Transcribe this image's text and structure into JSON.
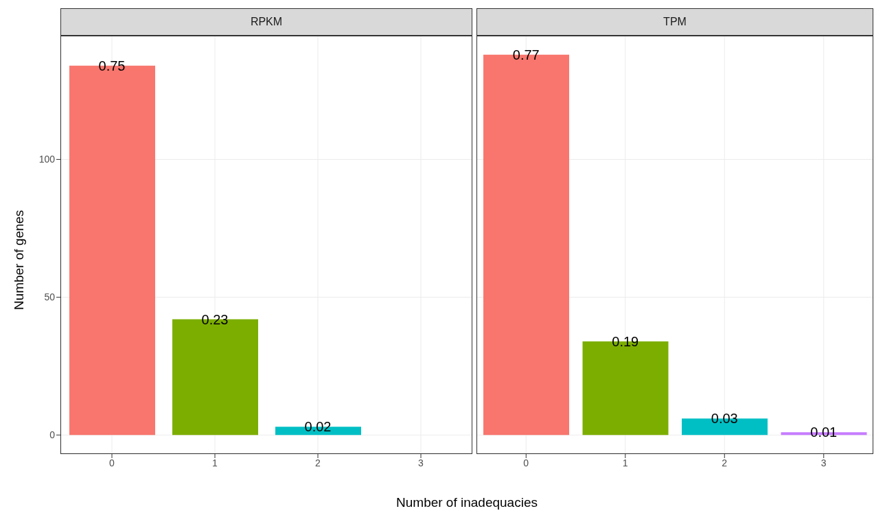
{
  "chart_data": [
    {
      "type": "bar",
      "title": "RPKM",
      "xlabel": "Number of inadequacies",
      "ylabel": "Number of genes",
      "categories": [
        "0",
        "1",
        "2",
        "3"
      ],
      "values": [
        134,
        42,
        3,
        null
      ],
      "colors": [
        "#f8766d",
        "#7cae00",
        "#00bfc4",
        "#c77cff"
      ],
      "ylim": [
        -6.9,
        144.9
      ],
      "yticks": [
        0,
        50,
        100
      ],
      "grid": true,
      "annotations": [
        {
          "text": "0.75",
          "x": "0",
          "y": 134
        },
        {
          "text": "0.23",
          "x": "1",
          "y": 42
        },
        {
          "text": "0.02",
          "x": "2",
          "y": 3
        }
      ]
    },
    {
      "type": "bar",
      "title": "TPM",
      "categories": [
        "0",
        "1",
        "2",
        "3"
      ],
      "values": [
        138,
        34,
        6,
        1
      ],
      "colors": [
        "#f8766d",
        "#7cae00",
        "#00bfc4",
        "#c77cff"
      ],
      "ylim": [
        -6.9,
        144.9
      ],
      "yticks": [
        0,
        50,
        100
      ],
      "grid": true,
      "tick_labels": "x",
      "annotations": [
        {
          "text": "0.77",
          "x": "0",
          "y": 138
        },
        {
          "text": "0.19",
          "x": "1",
          "y": 34
        },
        {
          "text": "0.03",
          "x": "2",
          "y": 6
        },
        {
          "text": "0.01",
          "x": "3",
          "y": 1
        }
      ]
    }
  ]
}
